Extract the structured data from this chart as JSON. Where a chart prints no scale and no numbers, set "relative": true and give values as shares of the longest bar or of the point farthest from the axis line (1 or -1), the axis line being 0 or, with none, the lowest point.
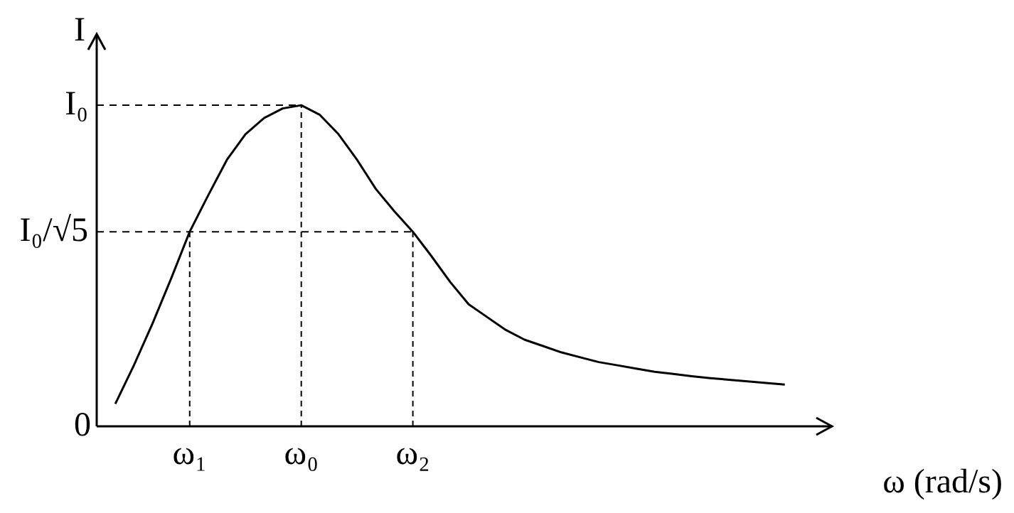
{
  "chart_data": {
    "type": "line",
    "relative": true,
    "xlabel": "ω (rad/s)",
    "ylabel": "I",
    "categories": [
      null,
      null,
      null,
      null,
      null,
      "ω₁",
      null,
      null,
      null,
      null,
      null,
      "ω₀",
      null,
      null,
      null,
      null,
      null,
      "ω₂",
      null,
      null,
      null,
      null,
      null,
      null,
      null,
      null,
      null,
      null,
      null,
      null,
      null,
      null,
      null,
      null,
      null,
      null,
      null,
      null,
      null,
      null
    ],
    "series": [
      {
        "color": "#000000",
        "values": [
          null,
          0.07,
          0.19,
          0.32,
          0.46,
          0.606,
          0.72,
          0.83,
          0.91,
          0.96,
          0.99,
          1.0,
          0.97,
          0.91,
          0.83,
          0.74,
          0.67,
          0.606,
          0.53,
          0.45,
          0.38,
          0.34,
          0.3,
          0.27,
          0.25,
          0.23,
          0.215,
          0.2,
          0.19,
          0.18,
          0.17,
          0.163,
          0.156,
          0.15,
          0.145,
          0.14,
          0.135,
          0.13,
          null,
          null
        ]
      }
    ],
    "ref_lines": [
      {
        "axis": "y",
        "value": 1,
        "label": "I₀",
        "line_style": "dashed",
        "color": "#000000"
      },
      {
        "axis": "y",
        "value": 0.606,
        "label": "I₀/√5",
        "line_style": "dashed",
        "color": "#000000"
      }
    ],
    "annotations": [
      "0"
    ],
    "legend": false,
    "marker": "none",
    "line_style": "solid"
  }
}
